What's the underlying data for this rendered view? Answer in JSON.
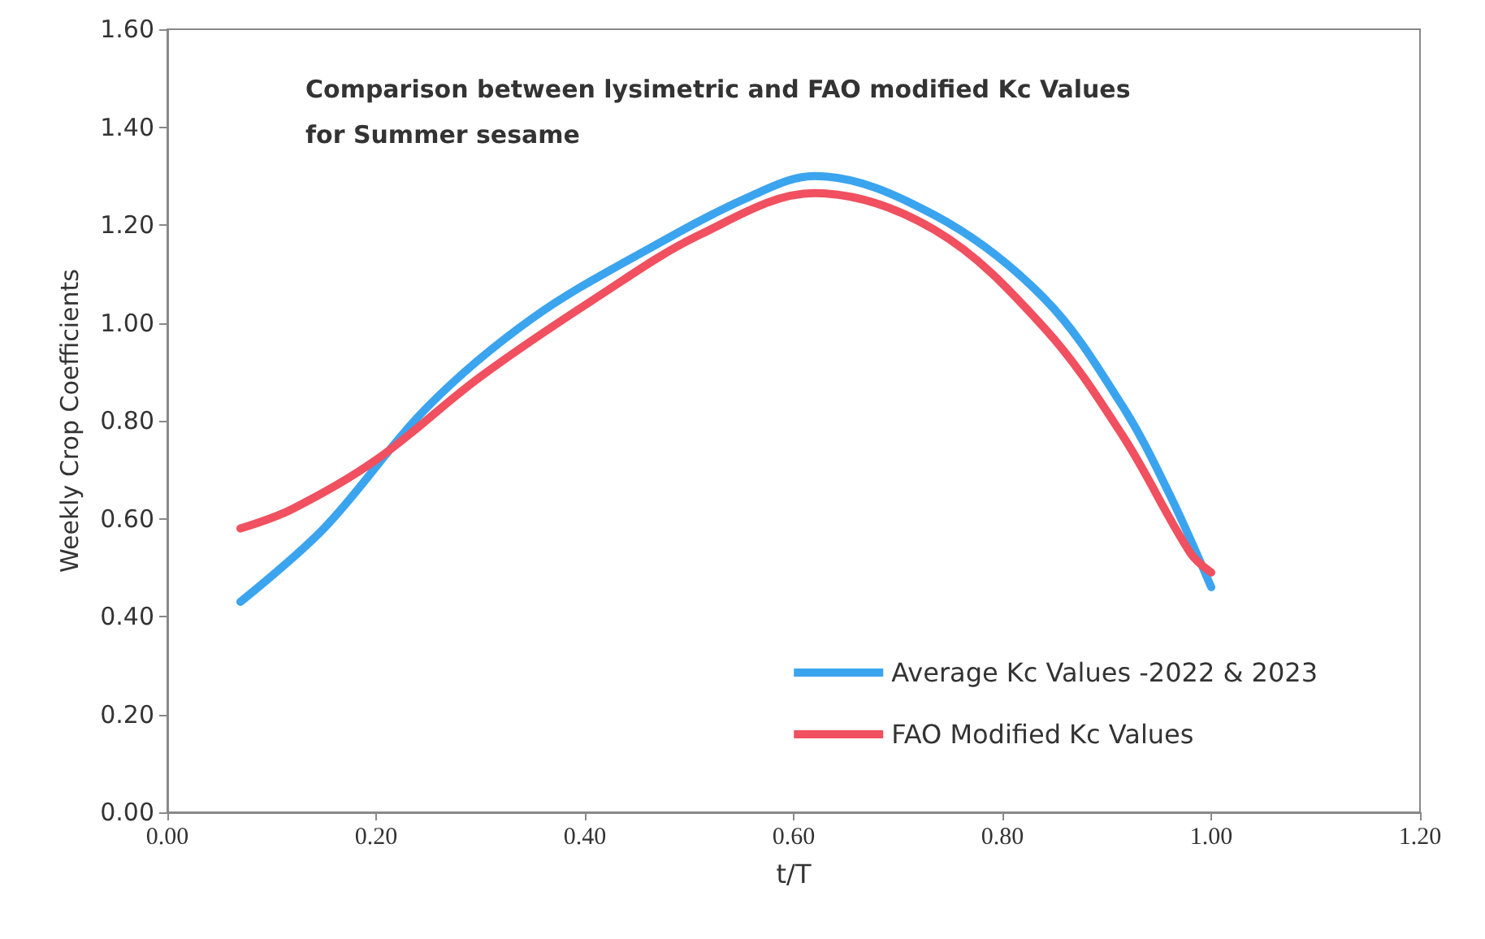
{
  "chart_data": {
    "type": "line",
    "title": "Comparison between lysimetric and FAO modified Kc Values for Summer sesame",
    "xlabel": "t/T",
    "ylabel": "Weekly Crop Coefficients",
    "series": [
      {
        "name": "Average Kc Values -2022 & 2023",
        "color": "#3ba4ef",
        "x": [
          0.07,
          0.15,
          0.25,
          0.35,
          0.46,
          0.56,
          0.62,
          0.735,
          0.84,
          0.915,
          0.96,
          1.0
        ],
        "values": [
          0.43,
          0.58,
          0.83,
          1.01,
          1.15,
          1.26,
          1.3,
          1.22,
          1.05,
          0.83,
          0.65,
          0.46
        ]
      },
      {
        "name": "FAO Modified Kc Values",
        "color": "#f0505f",
        "x": [
          0.07,
          0.12,
          0.2,
          0.3,
          0.41,
          0.51,
          0.62,
          0.735,
          0.84,
          0.915,
          0.98,
          1.0
        ],
        "values": [
          0.58,
          0.62,
          0.72,
          0.89,
          1.05,
          1.18,
          1.265,
          1.19,
          0.99,
          0.77,
          0.53,
          0.49
        ]
      }
    ],
    "xlim": [
      0,
      1.2
    ],
    "xticks": [
      {
        "value": 0,
        "label": "0.00"
      },
      {
        "value": 0.2,
        "label": "0.20"
      },
      {
        "value": 0.4,
        "label": "0.40"
      },
      {
        "value": 0.6,
        "label": "0.60"
      },
      {
        "value": 0.8,
        "label": "0.80"
      },
      {
        "value": 1,
        "label": "1.00"
      },
      {
        "value": 1.2,
        "label": "1.20"
      }
    ],
    "ylim": [
      0,
      1.6
    ],
    "yticks": [
      {
        "value": 0,
        "label": "0.00"
      },
      {
        "value": 0.2,
        "label": "0.20"
      },
      {
        "value": 0.4,
        "label": "0.40"
      },
      {
        "value": 0.6,
        "label": "0.60"
      },
      {
        "value": 0.8,
        "label": "0.80"
      },
      {
        "value": 1,
        "label": "1.00"
      },
      {
        "value": 1.2,
        "label": "1.20"
      },
      {
        "value": 1.4,
        "label": "1.40"
      },
      {
        "value": 1.6,
        "label": "1.60"
      }
    ],
    "grid": false,
    "legend": "bottom right",
    "marker": "none",
    "line_style": "solid"
  }
}
